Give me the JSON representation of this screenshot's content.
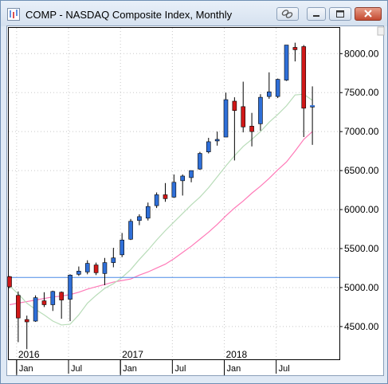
{
  "window": {
    "title": "COMP - NASDAQ Composite Index, Monthly"
  },
  "colors": {
    "up": "#2f6fd8",
    "down": "#d01818",
    "ma_short": "#b8dcb8",
    "ma_long": "#ff7ab8",
    "hline": "#4a8ae6"
  },
  "chart_data": {
    "type": "candlestick",
    "title": "COMP - NASDAQ Composite Index, Monthly",
    "y_ticks": [
      "8000.00",
      "7500.00",
      "7000.00",
      "6500.00",
      "6000.00",
      "5500.00",
      "5000.00",
      "4500.00"
    ],
    "y_tick_values": [
      8000,
      7500,
      7000,
      6500,
      6000,
      5500,
      5000,
      4500
    ],
    "ylim": [
      4080,
      8330
    ],
    "x_month_labels": [
      "Jan",
      "Jul",
      "Jan",
      "Jul",
      "Jan",
      "Jul"
    ],
    "x_year_labels": [
      "2016",
      "2017",
      "2018"
    ],
    "horizontal_line": 5130,
    "last_marker": 7330,
    "candles": [
      {
        "m": "2015-12",
        "o": 5140,
        "h": 5150,
        "l": 4990,
        "c": 5010
      },
      {
        "m": "2016-01",
        "o": 4900,
        "h": 4950,
        "l": 4300,
        "c": 4610
      },
      {
        "m": "2016-02",
        "o": 4590,
        "h": 4640,
        "l": 4210,
        "c": 4560
      },
      {
        "m": "2016-03",
        "o": 4570,
        "h": 4900,
        "l": 4560,
        "c": 4870
      },
      {
        "m": "2016-04",
        "o": 4830,
        "h": 4940,
        "l": 4750,
        "c": 4780
      },
      {
        "m": "2016-05",
        "o": 4780,
        "h": 4960,
        "l": 4700,
        "c": 4950
      },
      {
        "m": "2016-06",
        "o": 4940,
        "h": 4950,
        "l": 4600,
        "c": 4840
      },
      {
        "m": "2016-07",
        "o": 4850,
        "h": 5170,
        "l": 4570,
        "c": 5160
      },
      {
        "m": "2016-08",
        "o": 5170,
        "h": 5270,
        "l": 5150,
        "c": 5210
      },
      {
        "m": "2016-09",
        "o": 5200,
        "h": 5350,
        "l": 5170,
        "c": 5310
      },
      {
        "m": "2016-10",
        "o": 5290,
        "h": 5320,
        "l": 5160,
        "c": 5190
      },
      {
        "m": "2016-11",
        "o": 5180,
        "h": 5380,
        "l": 5030,
        "c": 5320
      },
      {
        "m": "2016-12",
        "o": 5320,
        "h": 5510,
        "l": 5260,
        "c": 5380
      },
      {
        "m": "2017-01",
        "o": 5420,
        "h": 5700,
        "l": 5390,
        "c": 5610
      },
      {
        "m": "2017-02",
        "o": 5620,
        "h": 5880,
        "l": 5610,
        "c": 5850
      },
      {
        "m": "2017-03",
        "o": 5860,
        "h": 5940,
        "l": 5800,
        "c": 5910
      },
      {
        "m": "2017-04",
        "o": 5890,
        "h": 6090,
        "l": 5860,
        "c": 6040
      },
      {
        "m": "2017-05",
        "o": 6050,
        "h": 6220,
        "l": 6020,
        "c": 6190
      },
      {
        "m": "2017-06",
        "o": 6190,
        "h": 6340,
        "l": 6100,
        "c": 6140
      },
      {
        "m": "2017-07",
        "o": 6160,
        "h": 6450,
        "l": 6150,
        "c": 6350
      },
      {
        "m": "2017-08",
        "o": 6370,
        "h": 6450,
        "l": 6180,
        "c": 6430
      },
      {
        "m": "2017-09",
        "o": 6410,
        "h": 6500,
        "l": 6350,
        "c": 6500
      },
      {
        "m": "2017-10",
        "o": 6520,
        "h": 6740,
        "l": 6510,
        "c": 6720
      },
      {
        "m": "2017-11",
        "o": 6740,
        "h": 6920,
        "l": 6720,
        "c": 6870
      },
      {
        "m": "2017-12",
        "o": 6880,
        "h": 7000,
        "l": 6820,
        "c": 6900
      },
      {
        "m": "2018-01",
        "o": 6930,
        "h": 7500,
        "l": 6930,
        "c": 7410
      },
      {
        "m": "2018-02",
        "o": 7390,
        "h": 7440,
        "l": 6630,
        "c": 7270
      },
      {
        "m": "2018-03",
        "o": 7320,
        "h": 7640,
        "l": 6990,
        "c": 7060
      },
      {
        "m": "2018-04",
        "o": 7070,
        "h": 7240,
        "l": 6810,
        "c": 7000
      },
      {
        "m": "2018-05",
        "o": 7100,
        "h": 7480,
        "l": 7010,
        "c": 7440
      },
      {
        "m": "2018-06",
        "o": 7450,
        "h": 7760,
        "l": 7420,
        "c": 7510
      },
      {
        "m": "2018-07",
        "o": 7450,
        "h": 7680,
        "l": 7430,
        "c": 7670
      },
      {
        "m": "2018-08",
        "o": 7660,
        "h": 8110,
        "l": 7650,
        "c": 8110
      },
      {
        "m": "2018-09",
        "o": 8080,
        "h": 8140,
        "l": 7900,
        "c": 8050
      },
      {
        "m": "2018-10",
        "o": 8090,
        "h": 8110,
        "l": 6930,
        "c": 7300
      },
      {
        "m": "2018-11",
        "o": 7320,
        "h": 7580,
        "l": 6830,
        "c": 7330
      }
    ],
    "ma_short_values": [
      5020,
      4920,
      4800,
      4720,
      4650,
      4570,
      4520,
      4530,
      4650,
      4800,
      4900,
      4990,
      5050,
      5130,
      5230,
      5360,
      5480,
      5610,
      5730,
      5840,
      5950,
      6060,
      6160,
      6280,
      6420,
      6560,
      6690,
      6810,
      6900,
      7000,
      7120,
      7220,
      7330,
      7470,
      7480,
      7400
    ],
    "ma_long_values": [
      4780,
      4800,
      4820,
      4840,
      4860,
      4880,
      4890,
      4910,
      4940,
      4980,
      5010,
      5040,
      5070,
      5090,
      5110,
      5160,
      5200,
      5250,
      5300,
      5370,
      5450,
      5530,
      5620,
      5710,
      5810,
      5920,
      6020,
      6110,
      6210,
      6300,
      6400,
      6510,
      6610,
      6750,
      6900,
      7000
    ]
  }
}
